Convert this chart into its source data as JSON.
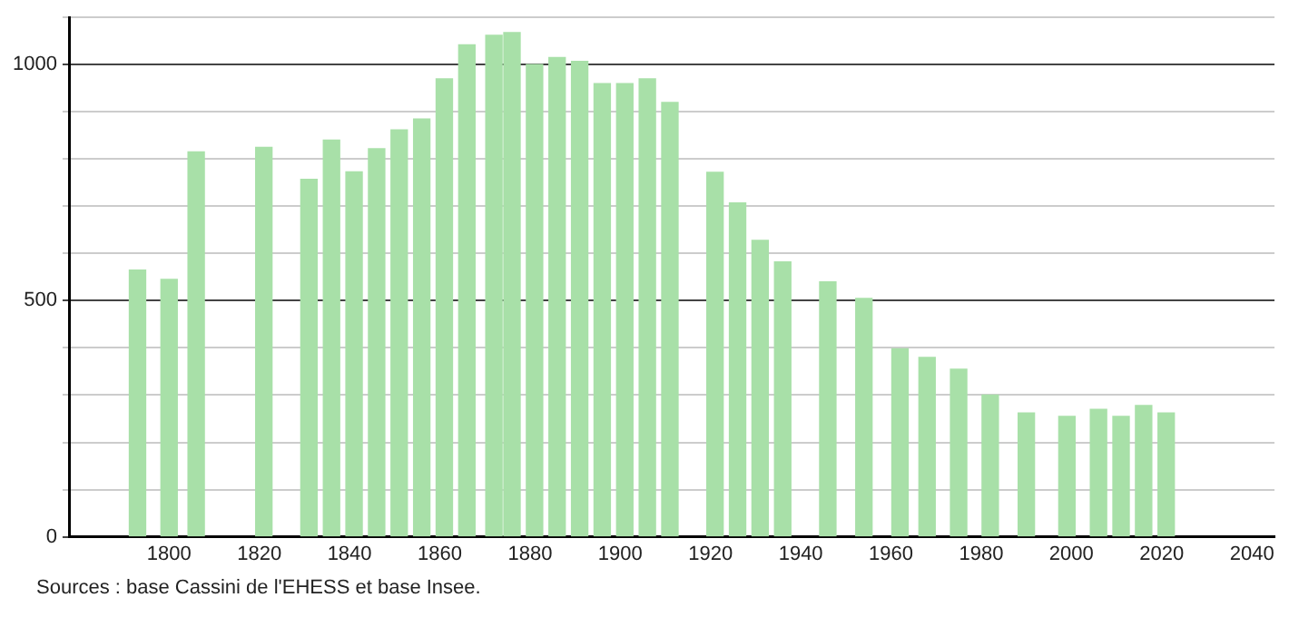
{
  "chart_data": {
    "type": "bar",
    "color": "#a8e0a8",
    "x": [
      1793,
      1800,
      1806,
      1821,
      1831,
      1836,
      1841,
      1846,
      1851,
      1856,
      1861,
      1866,
      1872,
      1876,
      1881,
      1886,
      1891,
      1896,
      1901,
      1906,
      1911,
      1921,
      1926,
      1931,
      1936,
      1946,
      1954,
      1962,
      1968,
      1975,
      1982,
      1990,
      1999,
      2006,
      2011,
      2016,
      2021
    ],
    "values": [
      565,
      545,
      815,
      825,
      757,
      840,
      773,
      822,
      862,
      885,
      970,
      1042,
      1062,
      1068,
      1000,
      1015,
      1007,
      960,
      960,
      970,
      920,
      772,
      707,
      628,
      582,
      540,
      505,
      398,
      380,
      355,
      300,
      262,
      255,
      270,
      255,
      278,
      262
    ],
    "xlim": [
      1778,
      2045
    ],
    "xticks": [
      1800,
      1820,
      1840,
      1860,
      1880,
      1900,
      1920,
      1940,
      1960,
      1980,
      2000,
      2020,
      2040
    ],
    "ylim": [
      0,
      1100
    ],
    "yticks": [
      0,
      {
        "value": 100,
        "label": null
      },
      {
        "value": 200,
        "label": null
      },
      {
        "value": 300,
        "label": null
      },
      {
        "value": 400,
        "label": null
      },
      500,
      {
        "value": 600,
        "label": null
      },
      {
        "value": 700,
        "label": null
      },
      {
        "value": 800,
        "label": null
      },
      {
        "value": 900,
        "label": null
      },
      1000,
      {
        "value": 1100,
        "label": null
      }
    ],
    "grid": "y",
    "annotations": [
      "Sources : base Cassini de l'EHESS et base Insee."
    ]
  }
}
